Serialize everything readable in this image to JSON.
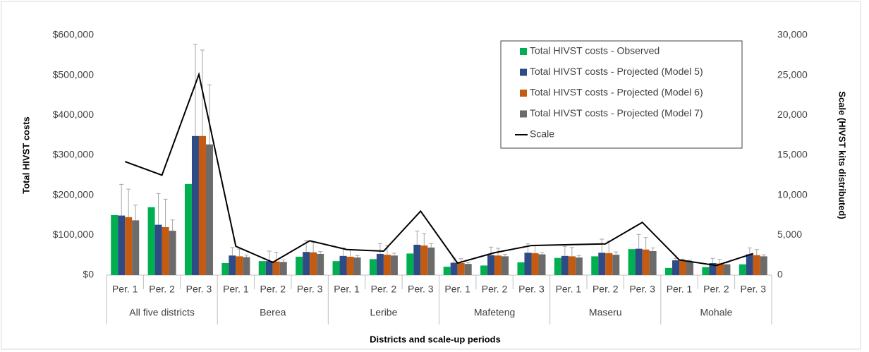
{
  "chart_data": {
    "type": "bar",
    "y_label": "Total HIVST costs",
    "y2_label": "Scale (HIVST kits distributed)",
    "x_label": "Districts and scale-up periods",
    "groups": [
      "All five districts",
      "Berea",
      "Leribe",
      "Mafeteng",
      "Maseru",
      "Mohale"
    ],
    "categories": [
      "Per. 1",
      "Per. 2",
      "Per. 3",
      "Per. 1",
      "Per. 2",
      "Per. 3",
      "Per. 1",
      "Per. 2",
      "Per. 3",
      "Per. 1",
      "Per. 2",
      "Per. 3",
      "Per. 1",
      "Per. 2",
      "Per. 3",
      "Per. 1",
      "Per. 2",
      "Per. 3"
    ],
    "ylim": [
      0,
      600000
    ],
    "yticks": [
      {
        "value": 0,
        "label": "$0"
      },
      {
        "value": 100000,
        "label": "$100,000"
      },
      {
        "value": 200000,
        "label": "$200,000"
      },
      {
        "value": 300000,
        "label": "$300,000"
      },
      {
        "value": 400000,
        "label": "$400,000"
      },
      {
        "value": 500000,
        "label": "$500,000"
      },
      {
        "value": 600000,
        "label": "$600,000"
      }
    ],
    "y2lim": [
      0,
      30000
    ],
    "y2ticks": [
      0,
      {
        "value": 5000,
        "label": "5,000"
      },
      {
        "value": 10000,
        "label": "10,000"
      },
      {
        "value": 15000,
        "label": "15,000"
      },
      {
        "value": 20000,
        "label": "20,000"
      },
      {
        "value": 25000,
        "label": "25,000"
      },
      {
        "value": 30000,
        "label": "30,000"
      }
    ],
    "series": [
      {
        "name": "Total HIVST costs - Observed",
        "color": "#00b050",
        "values": [
          150000,
          170000,
          228000,
          30000,
          35000,
          46000,
          35000,
          40000,
          54000,
          21000,
          24000,
          32000,
          43000,
          47000,
          65000,
          18000,
          20000,
          27000
        ]
      },
      {
        "name": "Total HIVST costs - Projected (Model 5)",
        "color": "#2f4b85",
        "values": [
          149000,
          126000,
          348000,
          49000,
          35000,
          58000,
          48000,
          53000,
          76000,
          31000,
          50000,
          56000,
          48000,
          56000,
          66000,
          37000,
          30000,
          52000
        ],
        "errors": [
          78000,
          78000,
          229000,
          20000,
          25000,
          28000,
          20000,
          26000,
          34000,
          12000,
          20000,
          22000,
          24000,
          34000,
          36000,
          5000,
          12000,
          16000
        ]
      },
      {
        "name": "Total HIVST costs - Projected (Model 6)",
        "color": "#c55a11",
        "values": [
          145000,
          120000,
          348000,
          47000,
          34000,
          57000,
          46000,
          51000,
          74000,
          30000,
          49000,
          55000,
          47000,
          55000,
          64000,
          36000,
          29000,
          50000
        ],
        "errors": [
          70000,
          70000,
          215000,
          18000,
          23000,
          25000,
          18000,
          23000,
          30000,
          11000,
          18000,
          20000,
          22000,
          30000,
          30000,
          4000,
          10000,
          14000
        ]
      },
      {
        "name": "Total HIVST costs - Projected (Model 7)",
        "color": "#6b6b6b",
        "values": [
          137000,
          111000,
          327000,
          45000,
          33000,
          53000,
          44000,
          49000,
          69000,
          28000,
          47000,
          52000,
          44000,
          51000,
          60000,
          34000,
          27000,
          47000
        ],
        "errors": [
          38000,
          27000,
          149000,
          5000,
          5000,
          6000,
          5000,
          6000,
          10000,
          3000,
          5000,
          5000,
          5000,
          7000,
          8000,
          3000,
          4000,
          4000
        ]
      },
      {
        "name": "Scale",
        "color": "#000000",
        "type": "line",
        "axis": "y2",
        "values": [
          14200,
          12500,
          25100,
          3600,
          1600,
          4300,
          3200,
          3000,
          8000,
          1500,
          2800,
          3700,
          3800,
          3900,
          6600,
          1900,
          1200,
          2700
        ]
      }
    ]
  }
}
